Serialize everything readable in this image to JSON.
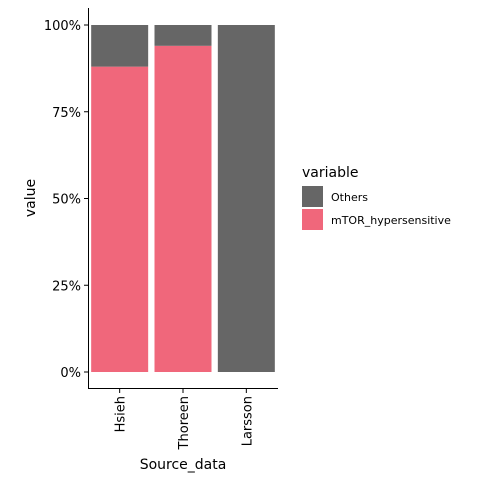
{
  "chart_data": {
    "type": "bar",
    "stacked": true,
    "percent": true,
    "xlabel": "Source_data",
    "ylabel": "value",
    "categories": [
      "Hsieh",
      "Thoreen",
      "Larsson"
    ],
    "series": [
      {
        "name": "Others",
        "color": "#666666",
        "values": [
          0.12,
          0.06,
          1.0
        ]
      },
      {
        "name": "mTOR_hypersensitive",
        "color": "#F0677B",
        "values": [
          0.88,
          0.94,
          0.0
        ]
      }
    ],
    "ylim": [
      0,
      1
    ],
    "yticks": [
      0,
      0.25,
      0.5,
      0.75,
      1.0
    ],
    "ytick_labels": [
      "0%",
      "25%",
      "50%",
      "75%",
      "100%"
    ],
    "grid": false,
    "legend": {
      "title": "variable",
      "placement": "right",
      "entries": [
        "Others",
        "mTOR_hypersensitive"
      ]
    }
  }
}
